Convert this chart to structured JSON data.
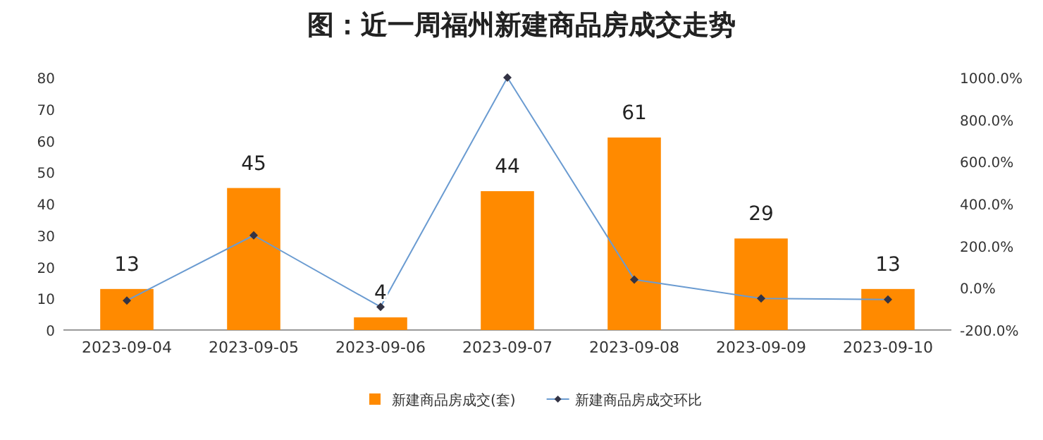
{
  "chart_data": {
    "type": "bar",
    "title": "图：近一周福州新建商品房成交走势",
    "categories": [
      "2023-09-04",
      "2023-09-05",
      "2023-09-06",
      "2023-09-07",
      "2023-09-08",
      "2023-09-09",
      "2023-09-10"
    ],
    "series": [
      {
        "name": "新建商品房成交(套)",
        "color": "#ff8a00",
        "values": [
          13,
          45,
          4,
          44,
          61,
          29,
          13
        ],
        "value_labels": [
          "13",
          "45",
          "4",
          "44",
          "61",
          "29",
          "13"
        ]
      },
      {
        "name": "新建商品房成交环比",
        "type": "line",
        "axis": "y2",
        "color": "#6a9bd1",
        "marker": "diamond",
        "values": [
          -60,
          250,
          -90,
          1000,
          40,
          -50,
          -55
        ]
      }
    ],
    "ylim": [
      0,
      80
    ],
    "yticks": [
      0,
      10,
      20,
      30,
      40,
      50,
      60,
      70,
      80
    ],
    "y2lim": [
      -200,
      1000
    ],
    "y2ticks": [
      {
        "value": -200,
        "label": "-200.0%"
      },
      {
        "value": 0,
        "label": "0.0%"
      },
      {
        "value": 200,
        "label": "200.0%"
      },
      {
        "value": 400,
        "label": "400.0%"
      },
      {
        "value": 600,
        "label": "600.0%"
      },
      {
        "value": 800,
        "label": "800.0%"
      },
      {
        "value": 1000,
        "label": "1000.0%"
      }
    ],
    "grid": false,
    "legend": "bottom"
  }
}
